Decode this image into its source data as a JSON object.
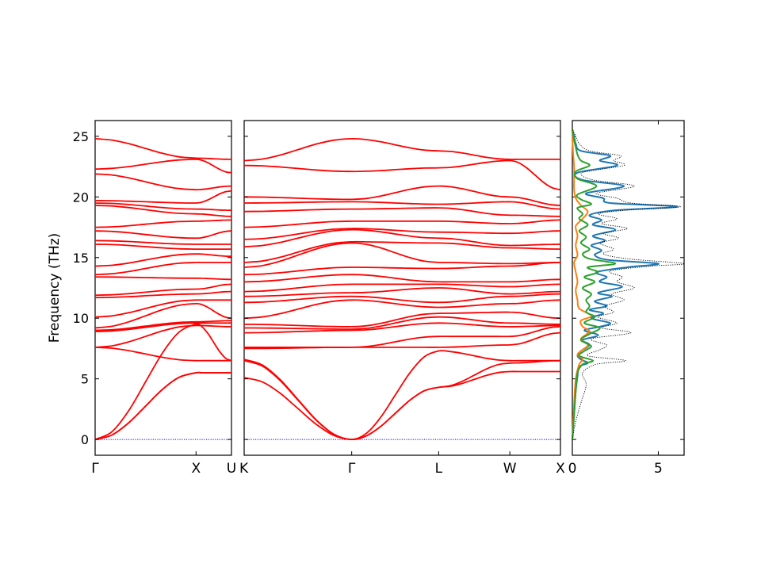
{
  "chart_data": [
    {
      "type": "line",
      "name": "phonon-band-structure",
      "ylabel": "Frequency (THz)",
      "ylim": [
        -1.3,
        26.3
      ],
      "yticks": [
        0,
        5,
        10,
        15,
        20,
        25
      ],
      "segments": [
        {
          "labels": [
            "Γ",
            "X",
            "U"
          ],
          "label_pos": [
            0,
            0.74,
            1.0
          ]
        },
        {
          "labels": [
            "K",
            "Γ",
            "L",
            "W",
            "X"
          ],
          "label_pos": [
            0,
            0.34,
            0.615,
            0.84,
            1.0
          ]
        }
      ],
      "band_count": 24,
      "band_color": "#ff0000",
      "zero_line_color": "#0000cc",
      "seg1_bands": [
        [
          0,
          5.5,
          5.5
        ],
        [
          0,
          5.5,
          5.5
        ],
        [
          0,
          9.5,
          6.5
        ],
        [
          7.6,
          6.5,
          6.5
        ],
        [
          7.6,
          9.4,
          9.3
        ],
        [
          8.9,
          9.6,
          9.6
        ],
        [
          9.0,
          9.7,
          9.8
        ],
        [
          9.2,
          11.2,
          10.0
        ],
        [
          10.1,
          11.5,
          11.5
        ],
        [
          11.7,
          12.0,
          12.2
        ],
        [
          11.9,
          12.4,
          12.8
        ],
        [
          13.4,
          13.3,
          13.2
        ],
        [
          13.6,
          14.6,
          14.6
        ],
        [
          14.3,
          15.3,
          15.1
        ],
        [
          16.1,
          15.7,
          15.7
        ],
        [
          16.4,
          16.1,
          16.1
        ],
        [
          17.2,
          16.6,
          17.2
        ],
        [
          17.5,
          18.0,
          18.1
        ],
        [
          19.3,
          18.6,
          18.4
        ],
        [
          19.5,
          19.0,
          18.9
        ],
        [
          19.7,
          19.5,
          20.5
        ],
        [
          21.9,
          20.6,
          20.9
        ],
        [
          22.3,
          23.1,
          22.0
        ],
        [
          24.8,
          23.2,
          23.1
        ]
      ],
      "seg2_bands": [
        [
          5.1,
          0,
          4.3,
          5.6,
          5.6
        ],
        [
          6.5,
          0,
          4.3,
          6.3,
          6.5
        ],
        [
          6.6,
          0,
          7.3,
          6.5,
          6.5
        ],
        [
          7.5,
          7.6,
          7.6,
          7.8,
          8.8
        ],
        [
          7.6,
          7.6,
          8.5,
          8.5,
          9.3
        ],
        [
          8.8,
          9.0,
          9.6,
          9.3,
          9.4
        ],
        [
          9.2,
          9.1,
          10.1,
          9.6,
          9.5
        ],
        [
          9.5,
          9.3,
          10.4,
          10.5,
          10.0
        ],
        [
          10.0,
          11.5,
          10.9,
          11.2,
          11.5
        ],
        [
          11.3,
          11.8,
          11.3,
          11.8,
          12.0
        ],
        [
          11.8,
          12.1,
          12.5,
          12.0,
          12.2
        ],
        [
          12.2,
          12.8,
          12.8,
          12.6,
          12.8
        ],
        [
          13.0,
          13.6,
          13.0,
          13.0,
          13.2
        ],
        [
          13.6,
          14.2,
          14.1,
          14.3,
          14.6
        ],
        [
          14.2,
          16.2,
          14.6,
          14.5,
          14.6
        ],
        [
          14.6,
          16.3,
          16.2,
          15.8,
          15.7
        ],
        [
          15.9,
          17.3,
          16.6,
          16.0,
          16.1
        ],
        [
          16.5,
          17.4,
          17.1,
          17.0,
          17.2
        ],
        [
          17.5,
          18.0,
          18.0,
          17.8,
          18.1
        ],
        [
          18.8,
          19.0,
          19.1,
          18.5,
          18.4
        ],
        [
          19.5,
          19.6,
          19.4,
          19.6,
          19.0
        ],
        [
          20.0,
          19.8,
          20.9,
          20.0,
          19.3
        ],
        [
          22.6,
          22.1,
          22.4,
          23.0,
          20.6
        ],
        [
          23.0,
          24.8,
          23.8,
          23.1,
          23.1
        ]
      ]
    },
    {
      "type": "line",
      "name": "phonon-dos",
      "xlim": [
        0,
        6.5
      ],
      "xticks": [
        0,
        5
      ],
      "series": [
        {
          "color": "#1f77b4",
          "points": [
            [
              0,
              0
            ],
            [
              0.1,
              2
            ],
            [
              0.2,
              4
            ],
            [
              0.3,
              5.2
            ],
            [
              0.4,
              6.0
            ],
            [
              0.9,
              6.3
            ],
            [
              0.5,
              6.6
            ],
            [
              0.3,
              6.9
            ],
            [
              0.5,
              7.3
            ],
            [
              1.0,
              7.8
            ],
            [
              0.6,
              8.2
            ],
            [
              1.5,
              8.6
            ],
            [
              0.7,
              9.0
            ],
            [
              1.6,
              9.3
            ],
            [
              2.2,
              9.6
            ],
            [
              1.1,
              10.0
            ],
            [
              1.8,
              10.4
            ],
            [
              1.0,
              10.7
            ],
            [
              2.0,
              11.0
            ],
            [
              1.3,
              11.4
            ],
            [
              2.3,
              11.8
            ],
            [
              1.5,
              12.1
            ],
            [
              2.9,
              12.6
            ],
            [
              1.6,
              13.0
            ],
            [
              2.0,
              13.4
            ],
            [
              1.4,
              13.8
            ],
            [
              3.2,
              14.2
            ],
            [
              5.0,
              14.5
            ],
            [
              2.1,
              14.8
            ],
            [
              1.3,
              15.2
            ],
            [
              1.7,
              15.6
            ],
            [
              1.1,
              16.0
            ],
            [
              1.9,
              16.4
            ],
            [
              1.2,
              16.8
            ],
            [
              2.5,
              17.3
            ],
            [
              1.2,
              17.7
            ],
            [
              1.7,
              18.1
            ],
            [
              1.0,
              18.5
            ],
            [
              2.5,
              18.9
            ],
            [
              6.1,
              19.2
            ],
            [
              2.2,
              19.5
            ],
            [
              1.8,
              19.9
            ],
            [
              0.8,
              20.3
            ],
            [
              3.0,
              20.9
            ],
            [
              0.6,
              21.4
            ],
            [
              0.3,
              22.0
            ],
            [
              2.6,
              22.6
            ],
            [
              1.6,
              23.0
            ],
            [
              2.2,
              23.4
            ],
            [
              0.5,
              23.8
            ],
            [
              0.2,
              24.4
            ],
            [
              0.1,
              25.0
            ],
            [
              0,
              25.6
            ]
          ]
        },
        {
          "color": "#ff7f0e",
          "points": [
            [
              0,
              0
            ],
            [
              0.1,
              3
            ],
            [
              0.2,
              5
            ],
            [
              0.4,
              6.2
            ],
            [
              0.6,
              6.6
            ],
            [
              0.3,
              7.0
            ],
            [
              0.6,
              7.4
            ],
            [
              0.9,
              7.8
            ],
            [
              0.5,
              8.3
            ],
            [
              1.0,
              8.9
            ],
            [
              0.6,
              9.3
            ],
            [
              0.5,
              9.8
            ],
            [
              1.1,
              10.2
            ],
            [
              0.4,
              10.8
            ],
            [
              0.3,
              11.5
            ],
            [
              0.2,
              12.3
            ],
            [
              0.3,
              13.0
            ],
            [
              0.2,
              13.8
            ],
            [
              0.1,
              14.6
            ],
            [
              0.3,
              15.2
            ],
            [
              0.2,
              16.0
            ],
            [
              0.3,
              16.8
            ],
            [
              0.2,
              17.6
            ],
            [
              0.6,
              18.2
            ],
            [
              0.9,
              18.8
            ],
            [
              0.5,
              19.3
            ],
            [
              0.2,
              19.9
            ],
            [
              0.1,
              20.6
            ],
            [
              0.1,
              21.5
            ],
            [
              0.1,
              22.5
            ],
            [
              0.05,
              23.5
            ],
            [
              0.02,
              24.5
            ],
            [
              0,
              25.6
            ]
          ]
        },
        {
          "color": "#2ca02c",
          "points": [
            [
              0,
              0
            ],
            [
              0.1,
              2
            ],
            [
              0.2,
              4
            ],
            [
              0.3,
              5.5
            ],
            [
              0.6,
              6.2
            ],
            [
              1.2,
              6.5
            ],
            [
              0.4,
              6.9
            ],
            [
              0.7,
              7.3
            ],
            [
              1.1,
              7.7
            ],
            [
              0.5,
              8.2
            ],
            [
              1.0,
              8.7
            ],
            [
              1.6,
              9.2
            ],
            [
              0.7,
              9.6
            ],
            [
              1.3,
              10.1
            ],
            [
              0.8,
              10.5
            ],
            [
              1.0,
              11.0
            ],
            [
              0.8,
              11.5
            ],
            [
              1.1,
              12.0
            ],
            [
              0.6,
              12.5
            ],
            [
              1.3,
              13.0
            ],
            [
              0.7,
              13.4
            ],
            [
              1.5,
              13.8
            ],
            [
              0.9,
              14.2
            ],
            [
              2.5,
              14.5
            ],
            [
              1.0,
              14.9
            ],
            [
              0.6,
              15.3
            ],
            [
              1.0,
              15.7
            ],
            [
              0.5,
              16.2
            ],
            [
              0.8,
              16.7
            ],
            [
              0.4,
              17.2
            ],
            [
              0.9,
              17.7
            ],
            [
              0.4,
              18.2
            ],
            [
              0.6,
              18.6
            ],
            [
              0.3,
              19.1
            ],
            [
              1.1,
              19.4
            ],
            [
              0.5,
              19.8
            ],
            [
              0.3,
              20.2
            ],
            [
              1.4,
              20.9
            ],
            [
              0.3,
              21.5
            ],
            [
              0.2,
              22.1
            ],
            [
              1.0,
              22.6
            ],
            [
              0.5,
              23.0
            ],
            [
              0.3,
              23.5
            ],
            [
              0.2,
              24.1
            ],
            [
              0.1,
              24.7
            ],
            [
              0,
              25.6
            ]
          ]
        },
        {
          "color": "#000000",
          "style": "dotted",
          "points": [
            [
              0,
              0
            ],
            [
              0.2,
              1.5
            ],
            [
              0.5,
              3
            ],
            [
              0.8,
              4.5
            ],
            [
              0.6,
              5.5
            ],
            [
              1.4,
              6.2
            ],
            [
              3.1,
              6.5
            ],
            [
              0.9,
              6.9
            ],
            [
              1.6,
              7.4
            ],
            [
              2.0,
              7.8
            ],
            [
              1.1,
              8.3
            ],
            [
              3.4,
              8.8
            ],
            [
              1.7,
              9.2
            ],
            [
              2.6,
              9.6
            ],
            [
              1.5,
              10.1
            ],
            [
              2.4,
              10.5
            ],
            [
              1.9,
              11.0
            ],
            [
              3.0,
              11.5
            ],
            [
              2.3,
              12.0
            ],
            [
              3.6,
              12.5
            ],
            [
              2.6,
              13.0
            ],
            [
              2.9,
              13.4
            ],
            [
              2.2,
              13.9
            ],
            [
              4.6,
              14.3
            ],
            [
              6.5,
              14.5
            ],
            [
              3.2,
              14.9
            ],
            [
              1.8,
              15.3
            ],
            [
              2.4,
              15.7
            ],
            [
              1.6,
              16.2
            ],
            [
              2.7,
              16.6
            ],
            [
              1.8,
              17.0
            ],
            [
              3.2,
              17.4
            ],
            [
              1.7,
              17.8
            ],
            [
              2.6,
              18.2
            ],
            [
              1.5,
              18.6
            ],
            [
              3.1,
              18.9
            ],
            [
              6.3,
              19.2
            ],
            [
              3.4,
              19.5
            ],
            [
              2.6,
              19.9
            ],
            [
              1.4,
              20.3
            ],
            [
              3.6,
              20.9
            ],
            [
              1.2,
              21.4
            ],
            [
              0.6,
              22.0
            ],
            [
              3.0,
              22.6
            ],
            [
              2.4,
              23.0
            ],
            [
              2.8,
              23.4
            ],
            [
              1.0,
              23.8
            ],
            [
              0.4,
              24.4
            ],
            [
              0.2,
              25.0
            ],
            [
              0,
              25.6
            ]
          ]
        }
      ]
    }
  ]
}
